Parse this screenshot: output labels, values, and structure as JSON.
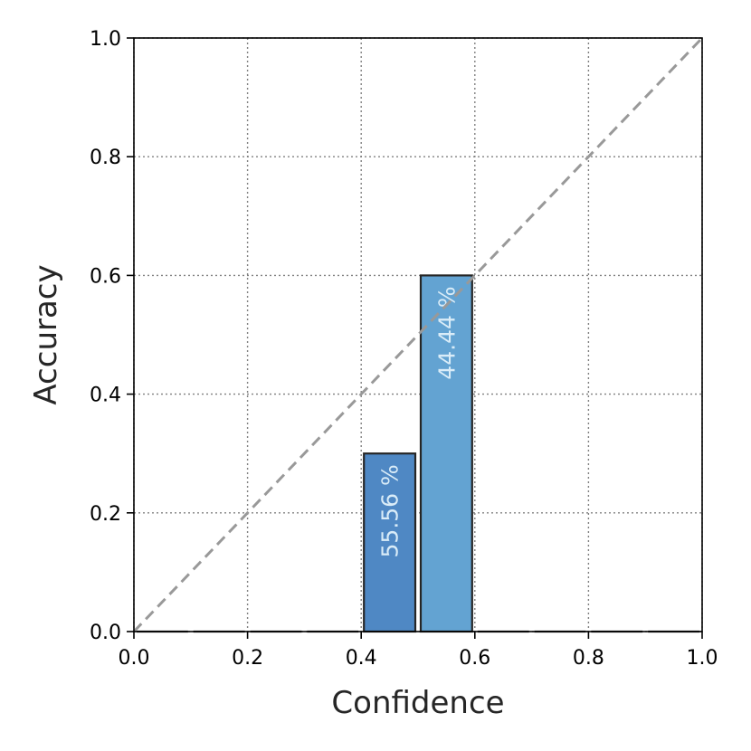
{
  "chart_data": {
    "type": "bar",
    "xlabel": "Confidence",
    "ylabel": "Accuracy",
    "xlim": [
      0.0,
      1.0
    ],
    "ylim": [
      0.0,
      1.0
    ],
    "xticks": [
      "0.0",
      "0.2",
      "0.4",
      "0.6",
      "0.8",
      "1.0"
    ],
    "yticks": [
      "0.0",
      "0.2",
      "0.4",
      "0.6",
      "0.8",
      "1.0"
    ],
    "grid": true,
    "grid_style": "dotted",
    "reference_line": {
      "from": [
        0.0,
        0.0
      ],
      "to": [
        1.0,
        1.0
      ],
      "style": "dashed",
      "color": "#999999"
    },
    "bars": [
      {
        "x_start": 0.0,
        "x_end": 0.1,
        "value": 0.0
      },
      {
        "x_start": 0.1,
        "x_end": 0.2,
        "value": 0.0
      },
      {
        "x_start": 0.2,
        "x_end": 0.3,
        "value": 0.0
      },
      {
        "x_start": 0.3,
        "x_end": 0.4,
        "value": 0.0
      },
      {
        "x_start": 0.4,
        "x_end": 0.5,
        "value": 0.3,
        "label": "55.56 %",
        "color": "#4f88c4"
      },
      {
        "x_start": 0.5,
        "x_end": 0.6,
        "value": 0.6,
        "label": "44.44 %",
        "color": "#63a3d2"
      },
      {
        "x_start": 0.6,
        "x_end": 0.7,
        "value": 0.0
      },
      {
        "x_start": 0.7,
        "x_end": 0.8,
        "value": 0.0
      },
      {
        "x_start": 0.8,
        "x_end": 0.9,
        "value": 0.0
      },
      {
        "x_start": 0.9,
        "x_end": 1.0,
        "value": 0.0
      }
    ],
    "bar_edge_color": "#262626",
    "bar_label_color": "#d9ecf8"
  }
}
